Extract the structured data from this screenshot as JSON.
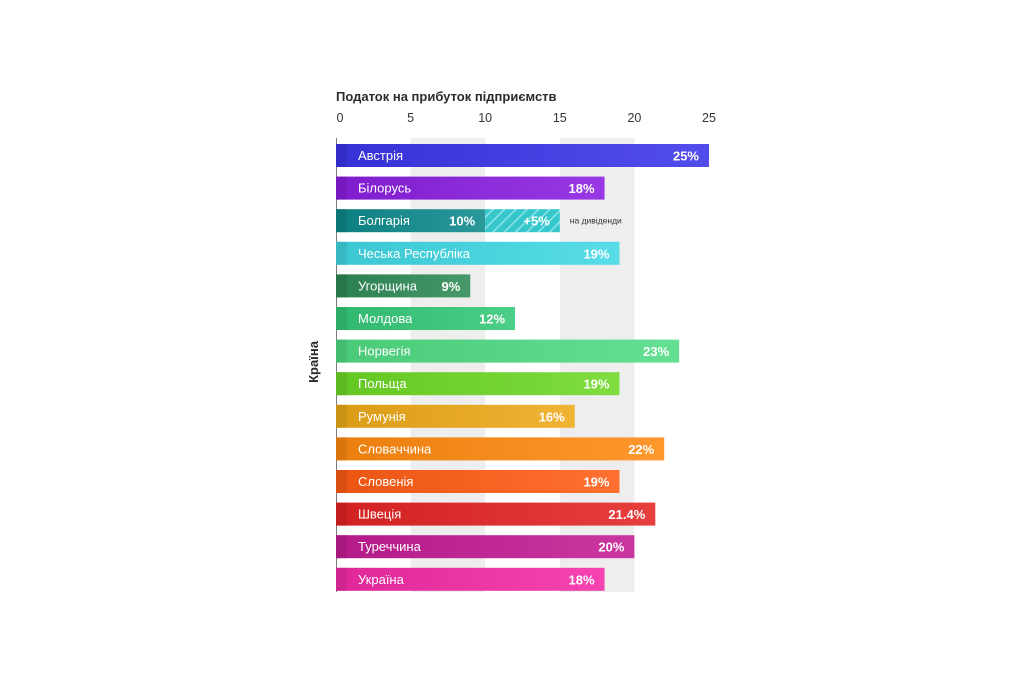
{
  "chart_data": {
    "type": "bar",
    "orientation": "horizontal",
    "title": "Податок на прибуток підприємств",
    "ylabel": "Країна",
    "xlabel": "",
    "xlim": [
      0,
      25
    ],
    "xticks": [
      0,
      5,
      10,
      15,
      20,
      25
    ],
    "grid": "alternating vertical bands",
    "categories": [
      "Австрія",
      "Білорусь",
      "Болгарія",
      "Чеська Республіка",
      "Угорщина",
      "Молдова",
      "Норвегія",
      "Польща",
      "Румунія",
      "Словаччина",
      "Словенія",
      "Швеція",
      "Туреччина",
      "Україна"
    ],
    "values": [
      25,
      18,
      10,
      19,
      9,
      12,
      23,
      19,
      16,
      22,
      19,
      21.4,
      20,
      18
    ],
    "value_labels": [
      "25%",
      "18%",
      "10%",
      "19%",
      "9%",
      "12%",
      "23%",
      "19%",
      "16%",
      "22%",
      "19%",
      "21.4%",
      "20%",
      "18%"
    ],
    "colors": [
      "#3a35e8",
      "#8a1ee0",
      "#0e8a8c",
      "#40d8e4",
      "#2e8a56",
      "#34c878",
      "#50dc84",
      "#6ed826",
      "#eeaa18",
      "#ff8a10",
      "#ff5c14",
      "#e42424",
      "#c41c94",
      "#f42aa6"
    ],
    "extra_segments": [
      {
        "category": "Болгарія",
        "start": 10,
        "value": 5,
        "label": "+5%",
        "annotation": "на дивіденди"
      }
    ]
  }
}
